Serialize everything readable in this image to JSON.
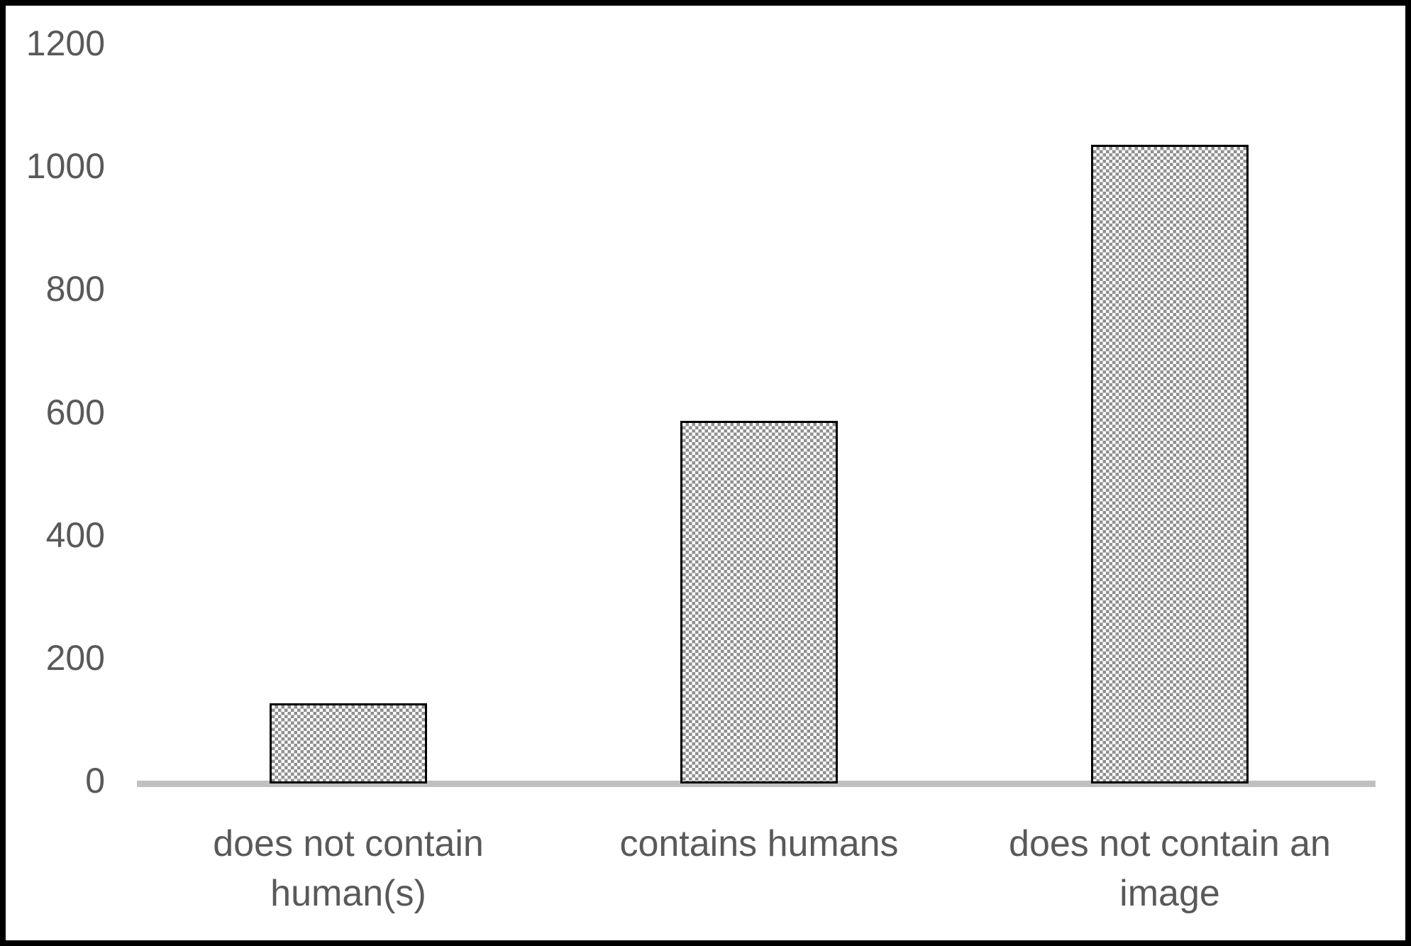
{
  "chart_data": {
    "type": "bar",
    "categories": [
      "does not contain human(s)",
      "contains humans",
      "does not contain an image"
    ],
    "category_label_lines": [
      "does not contain\nhuman(s)",
      "contains humans",
      "does not contain an\nimage"
    ],
    "values": [
      130,
      590,
      1040
    ],
    "title": "",
    "xlabel": "",
    "ylabel": "",
    "ylim": [
      0,
      1200
    ],
    "yticks": [
      0,
      200,
      400,
      600,
      800,
      1000,
      1200
    ],
    "grid": false,
    "legend_position": "none",
    "bar_fill_style": "checkerboard-pattern",
    "colors": {
      "bar_pattern_gray": "#8f8f8f",
      "bar_outline": "#000000",
      "axis_line": "#c0c0c0",
      "text": "#595959",
      "frame_border": "#000000",
      "background": "#ffffff"
    }
  }
}
